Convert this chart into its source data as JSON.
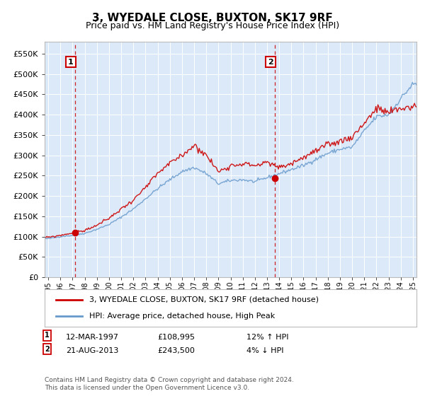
{
  "title": "3, WYEDALE CLOSE, BUXTON, SK17 9RF",
  "subtitle": "Price paid vs. HM Land Registry's House Price Index (HPI)",
  "property_label": "3, WYEDALE CLOSE, BUXTON, SK17 9RF (detached house)",
  "hpi_label": "HPI: Average price, detached house, High Peak",
  "transaction1": {
    "num": 1,
    "date": "12-MAR-1997",
    "price": 108995,
    "hpi_pct": "12% ↑ HPI",
    "year": 1997.2
  },
  "transaction2": {
    "num": 2,
    "date": "21-AUG-2013",
    "price": 243500,
    "hpi_pct": "4% ↓ HPI",
    "year": 2013.64
  },
  "ylim": [
    0,
    580000
  ],
  "xlim_start": 1994.7,
  "xlim_end": 2025.3,
  "yticks": [
    0,
    50000,
    100000,
    150000,
    200000,
    250000,
    300000,
    350000,
    400000,
    450000,
    500000,
    550000
  ],
  "ytick_labels": [
    "£0",
    "£50K",
    "£100K",
    "£150K",
    "£200K",
    "£250K",
    "£300K",
    "£350K",
    "£400K",
    "£450K",
    "£500K",
    "£550K"
  ],
  "background_color": "#dce9f8",
  "fig_background": "#ffffff",
  "grid_color": "#ffffff",
  "property_line_color": "#cc0000",
  "hpi_line_color": "#6699cc",
  "vline_color": "#cc0000",
  "footnote": "Contains HM Land Registry data © Crown copyright and database right 2024.\nThis data is licensed under the Open Government Licence v3.0.",
  "hpi_waypoints_x": [
    1995,
    1996,
    1997,
    1998,
    1999,
    2000,
    2001,
    2002,
    2003,
    2004,
    2005,
    2006,
    2007,
    2008,
    2009,
    2010,
    2011,
    2012,
    2013,
    2014,
    2015,
    2016,
    2017,
    2018,
    2019,
    2020,
    2021,
    2022,
    2023,
    2024,
    2025
  ],
  "hpi_waypoints_y": [
    95000,
    100000,
    103000,
    108000,
    118000,
    130000,
    148000,
    168000,
    193000,
    218000,
    240000,
    260000,
    270000,
    255000,
    230000,
    238000,
    240000,
    235000,
    245000,
    255000,
    265000,
    275000,
    290000,
    305000,
    315000,
    320000,
    360000,
    395000,
    400000,
    440000,
    475000
  ],
  "prop_waypoints_x": [
    1995,
    1996,
    1997,
    1998,
    1999,
    2000,
    2001,
    2002,
    2003,
    2004,
    2005,
    2006,
    2007,
    2008,
    2009,
    2010,
    2011,
    2012,
    2013,
    2014,
    2015,
    2016,
    2017,
    2018,
    2019,
    2020,
    2021,
    2022,
    2023,
    2024,
    2025
  ],
  "prop_waypoints_y": [
    98000,
    103000,
    109000,
    115000,
    128000,
    145000,
    168000,
    190000,
    220000,
    255000,
    280000,
    300000,
    325000,
    300000,
    260000,
    275000,
    280000,
    275000,
    282000,
    270000,
    280000,
    295000,
    310000,
    325000,
    335000,
    345000,
    380000,
    415000,
    405000,
    415000,
    420000
  ]
}
